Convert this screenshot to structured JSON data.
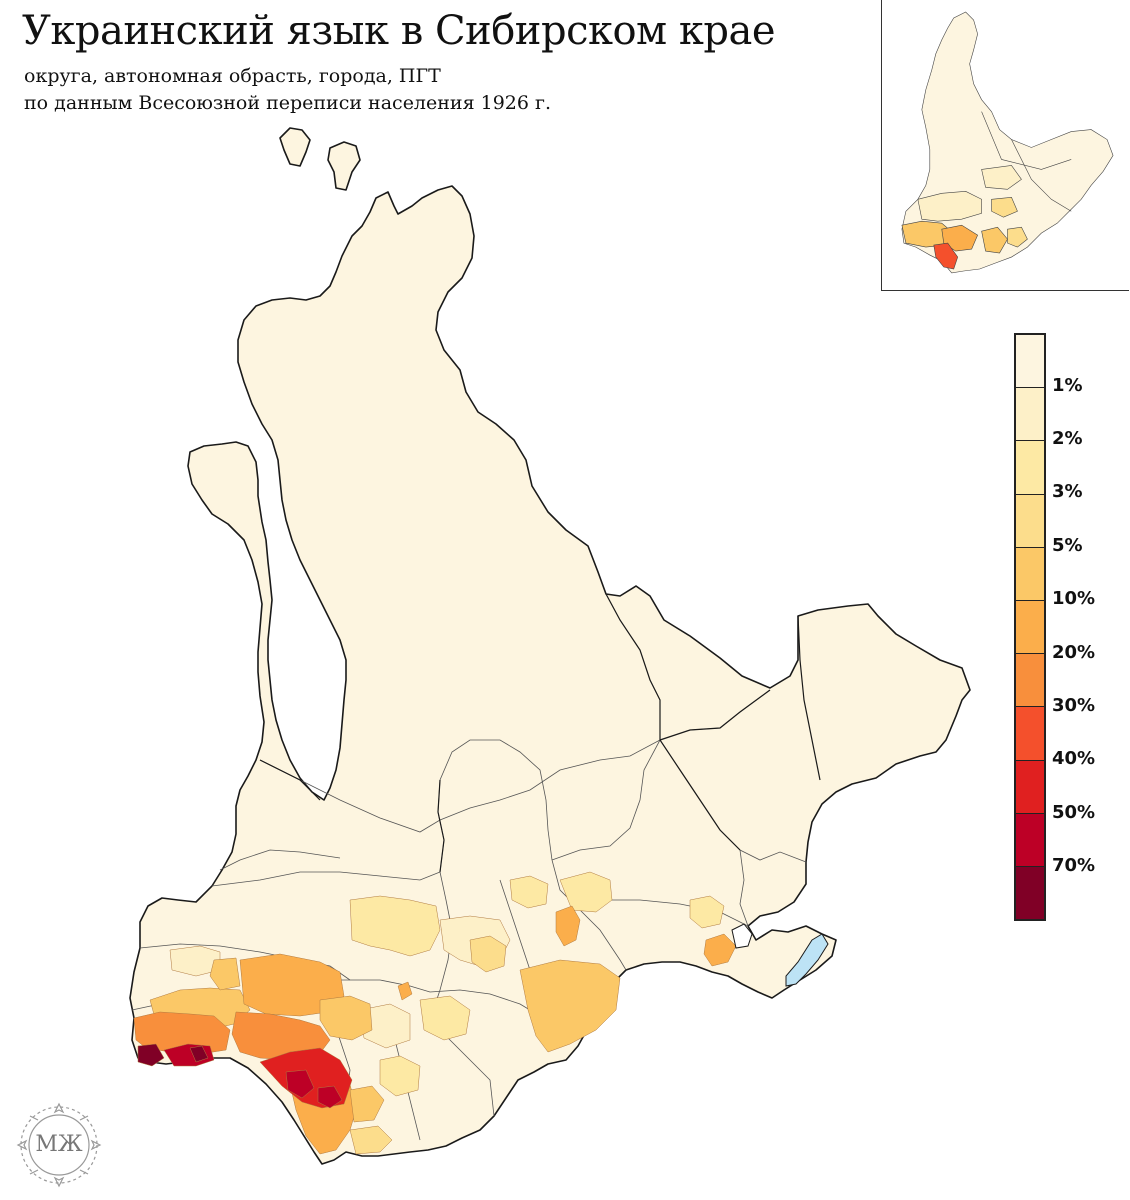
{
  "header": {
    "title": "Украинский язык в Сибирском крае",
    "subtitle_line1": "округа, автономная обрасть, города, ПГТ",
    "subtitle_line2": "по данным Всесоюзной переписи населения 1926 г."
  },
  "legend": {
    "items": [
      {
        "label": "",
        "color": "#fdf5e0"
      },
      {
        "label": "1%",
        "color": "#fdf0c8"
      },
      {
        "label": "2%",
        "color": "#fde9a4"
      },
      {
        "label": "3%",
        "color": "#fcdd8c"
      },
      {
        "label": "5%",
        "color": "#fbc867"
      },
      {
        "label": "10%",
        "color": "#fbae4b"
      },
      {
        "label": "20%",
        "color": "#f88f3c"
      },
      {
        "label": "30%",
        "color": "#f4502c"
      },
      {
        "label": "40%",
        "color": "#e02020"
      },
      {
        "label": "50%",
        "color": "#bd0026"
      },
      {
        "label": "70%",
        "color": "#800026"
      }
    ]
  },
  "map": {
    "base_color": "#fdf5e0",
    "border_color": "#1a1a1a",
    "lake_color": "#bde3f5"
  },
  "logo": {
    "text": "МЖ"
  }
}
